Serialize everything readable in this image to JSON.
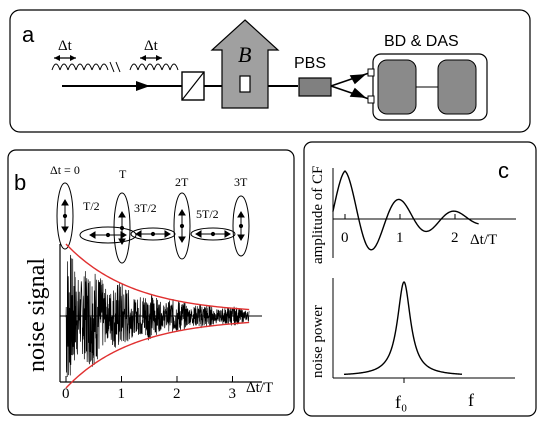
{
  "panel_a": {
    "label": "a",
    "pulse_spacing_label_1": "Δt",
    "pulse_spacing_label_2": "Δt",
    "field_label": "B",
    "pbs_label": "PBS",
    "detector_label": "BD & DAS"
  },
  "panel_b": {
    "label": "b",
    "ylabel": "noise signal",
    "xlabel": "Δt/T",
    "precession_labels": [
      "Δt = 0",
      "T/2",
      "T",
      "3T/2",
      "2T",
      "5T/2",
      "3T"
    ],
    "chart_data": {
      "type": "line",
      "title": "",
      "xlabel": "Δt/T",
      "ylabel": "noise signal",
      "xticks": [
        "0",
        "1",
        "2",
        "3"
      ],
      "xlim": [
        0,
        3.4
      ],
      "envelope_decay_constant": 1.2,
      "envelope_color": "#e03030",
      "signal_color": "#000000"
    }
  },
  "panel_c": {
    "label": "c",
    "top_chart": {
      "type": "line",
      "ylabel": "amplitude of CF",
      "xlabel": "Δt/T",
      "xticks": [
        "0",
        "1",
        "2"
      ],
      "xlim": [
        -0.3,
        2.6
      ]
    },
    "bottom_chart": {
      "type": "line",
      "ylabel": "noise power",
      "xlabel": "f",
      "peak_label": "f₀"
    }
  }
}
